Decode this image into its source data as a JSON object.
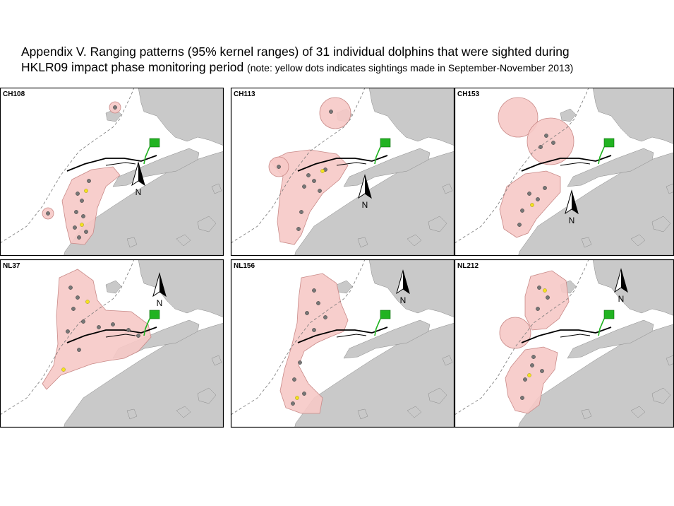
{
  "title": {
    "line1": "Appendix V.  Ranging patterns (95% kernel ranges) of 31 individual dolphins that were sighted during",
    "line2_main": "HKLR09 impact phase monitoring period ",
    "line2_note": "(note: yellow dots indicates sightings made in September-November 2013)"
  },
  "colors": {
    "land": "#c9c9c9",
    "range": "#f6c9c7",
    "range_edge": "#c98a88",
    "sighting": "#777777",
    "sighting_recent": "#f4e21f",
    "reclamation": "#21b321",
    "frame": "#000000"
  },
  "north_label": "N",
  "panels": [
    {
      "label": "CH108"
    },
    {
      "label": "CH113"
    },
    {
      "label": "CH153"
    },
    {
      "label": "NL37"
    },
    {
      "label": "NL156"
    },
    {
      "label": "NL212"
    }
  ]
}
